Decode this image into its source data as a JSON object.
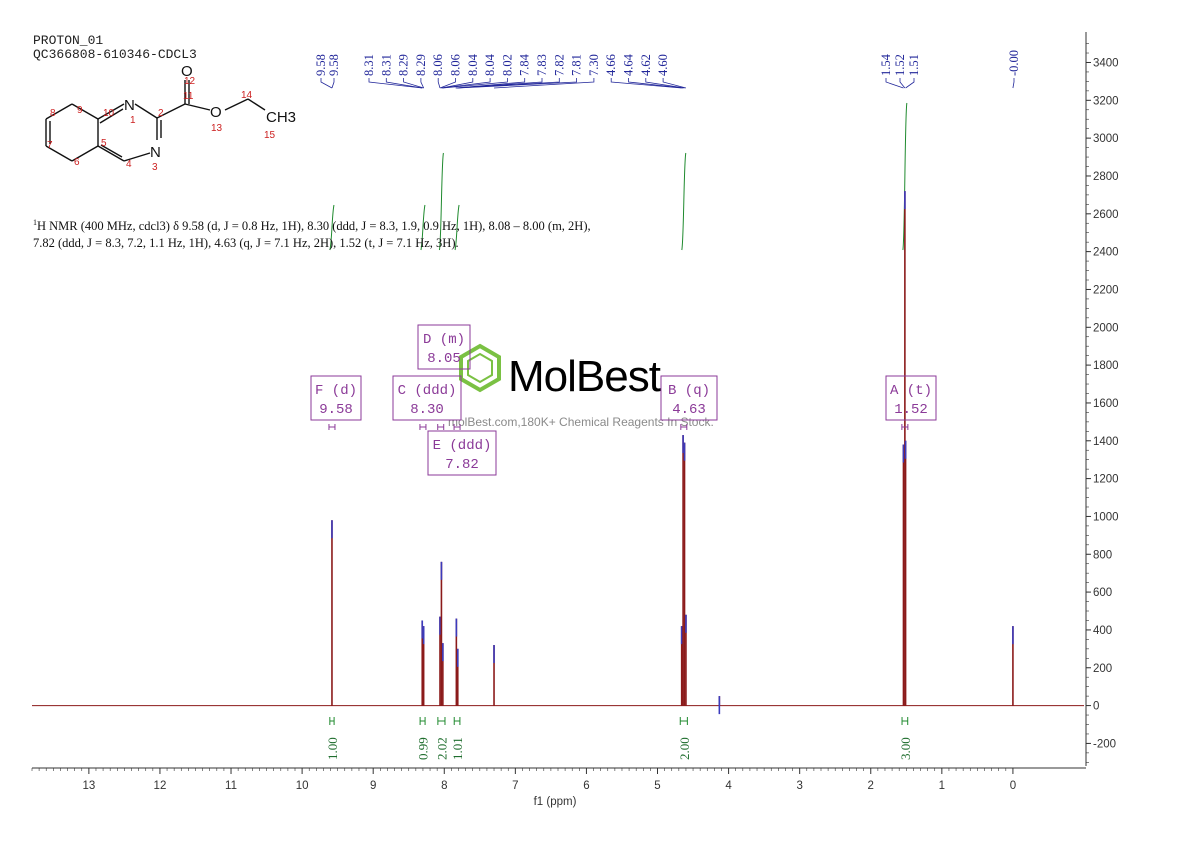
{
  "header": {
    "line1": "PROTON_01",
    "line2": "QC366808-610346-CDCL3"
  },
  "molecule": {
    "atoms": {
      "N1": "N",
      "N3": "N",
      "O12": "O",
      "O13": "O",
      "CH3": "CH3"
    },
    "numbers": [
      "9",
      "10",
      "1",
      "2",
      "11",
      "12",
      "13",
      "14",
      "15",
      "8",
      "7",
      "6",
      "5",
      "4",
      "3"
    ]
  },
  "description": {
    "nucleus_sup": "1",
    "text": "H NMR (400 MHz, cdcl3) δ 9.58 (d, J = 0.8 Hz, 1H), 8.30 (ddd, J = 8.3, 1.9, 0.9 Hz, 1H), 8.08 – 8.00 (m, 2H), 7.82 (ddd, J = 8.3, 7.2, 1.1 Hz, 1H), 4.63 (q, J = 7.1 Hz, 2H), 1.52 (t, J = 7.1 Hz, 3H)."
  },
  "watermark": {
    "brand": "MolBest",
    "tagline": "molBest.com,180K+ Chemical Reagents In Stock."
  },
  "colors": {
    "spectrum": "#8b1a1a",
    "peak_labels": "#22279a",
    "integrals": "#1f8a2e",
    "multiplets": "#8b3a98",
    "axis": "#333333",
    "logo": "#7ac143"
  },
  "chart_data": {
    "type": "line",
    "title": "",
    "xlabel": "f1 (ppm)",
    "ylabel": "",
    "xlim": [
      13.8,
      -1.0
    ],
    "ylim": [
      -330,
      3540
    ],
    "x_ticks": [
      13,
      12,
      11,
      10,
      9,
      8,
      7,
      6,
      5,
      4,
      3,
      2,
      1,
      0
    ],
    "y_ticks": [
      -200,
      0,
      200,
      400,
      600,
      800,
      1000,
      1200,
      1400,
      1600,
      1800,
      2000,
      2200,
      2400,
      2600,
      2800,
      3000,
      3200,
      3400
    ],
    "peaks": [
      {
        "ppm": 9.58,
        "height": 980
      },
      {
        "ppm": 8.31,
        "height": 450
      },
      {
        "ppm": 8.29,
        "height": 420
      },
      {
        "ppm": 8.06,
        "height": 470
      },
      {
        "ppm": 8.04,
        "height": 760
      },
      {
        "ppm": 8.02,
        "height": 330
      },
      {
        "ppm": 7.83,
        "height": 460
      },
      {
        "ppm": 7.81,
        "height": 300
      },
      {
        "ppm": 7.3,
        "height": 320
      },
      {
        "ppm": 4.66,
        "height": 420
      },
      {
        "ppm": 4.64,
        "height": 1430
      },
      {
        "ppm": 4.62,
        "height": 1390
      },
      {
        "ppm": 4.6,
        "height": 480
      },
      {
        "ppm": 4.13,
        "height": 50
      },
      {
        "ppm": 1.54,
        "height": 1380
      },
      {
        "ppm": 1.52,
        "height": 2720
      },
      {
        "ppm": 1.51,
        "height": 1400
      },
      {
        "ppm": 0.0,
        "height": 420
      }
    ],
    "peak_labels": {
      "group1": [
        "9.58",
        "9.58"
      ],
      "group2": [
        "8.31",
        "8.31",
        "8.29",
        "8.29",
        "8.06",
        "8.06",
        "8.04",
        "8.04",
        "8.02",
        "7.84",
        "7.83",
        "7.82",
        "7.81",
        "7.30",
        "4.66",
        "4.64",
        "4.62",
        "4.60"
      ],
      "group3": [
        "1.54",
        "1.52",
        "1.51"
      ],
      "group4": [
        "-0.00"
      ]
    },
    "integrals": [
      {
        "range": [
          9.61,
          9.55
        ],
        "value": "1.00"
      },
      {
        "range": [
          8.34,
          8.27
        ],
        "value": "0.99"
      },
      {
        "range": [
          8.09,
          7.99
        ],
        "value": "2.02"
      },
      {
        "range": [
          7.86,
          7.78
        ],
        "value": "1.01"
      },
      {
        "range": [
          4.68,
          4.58
        ],
        "value": "2.00"
      },
      {
        "range": [
          1.56,
          1.48
        ],
        "value": "3.00"
      }
    ],
    "multiplets": [
      {
        "letter": "F",
        "type": "(d)",
        "shift": "9.58"
      },
      {
        "letter": "C",
        "type": "(ddd)",
        "shift": "8.30"
      },
      {
        "letter": "D",
        "type": "(m)",
        "shift": "8.05"
      },
      {
        "letter": "E",
        "type": "(ddd)",
        "shift": "7.82"
      },
      {
        "letter": "B",
        "type": "(q)",
        "shift": "4.63"
      },
      {
        "letter": "A",
        "type": "(t)",
        "shift": "1.52"
      }
    ]
  }
}
